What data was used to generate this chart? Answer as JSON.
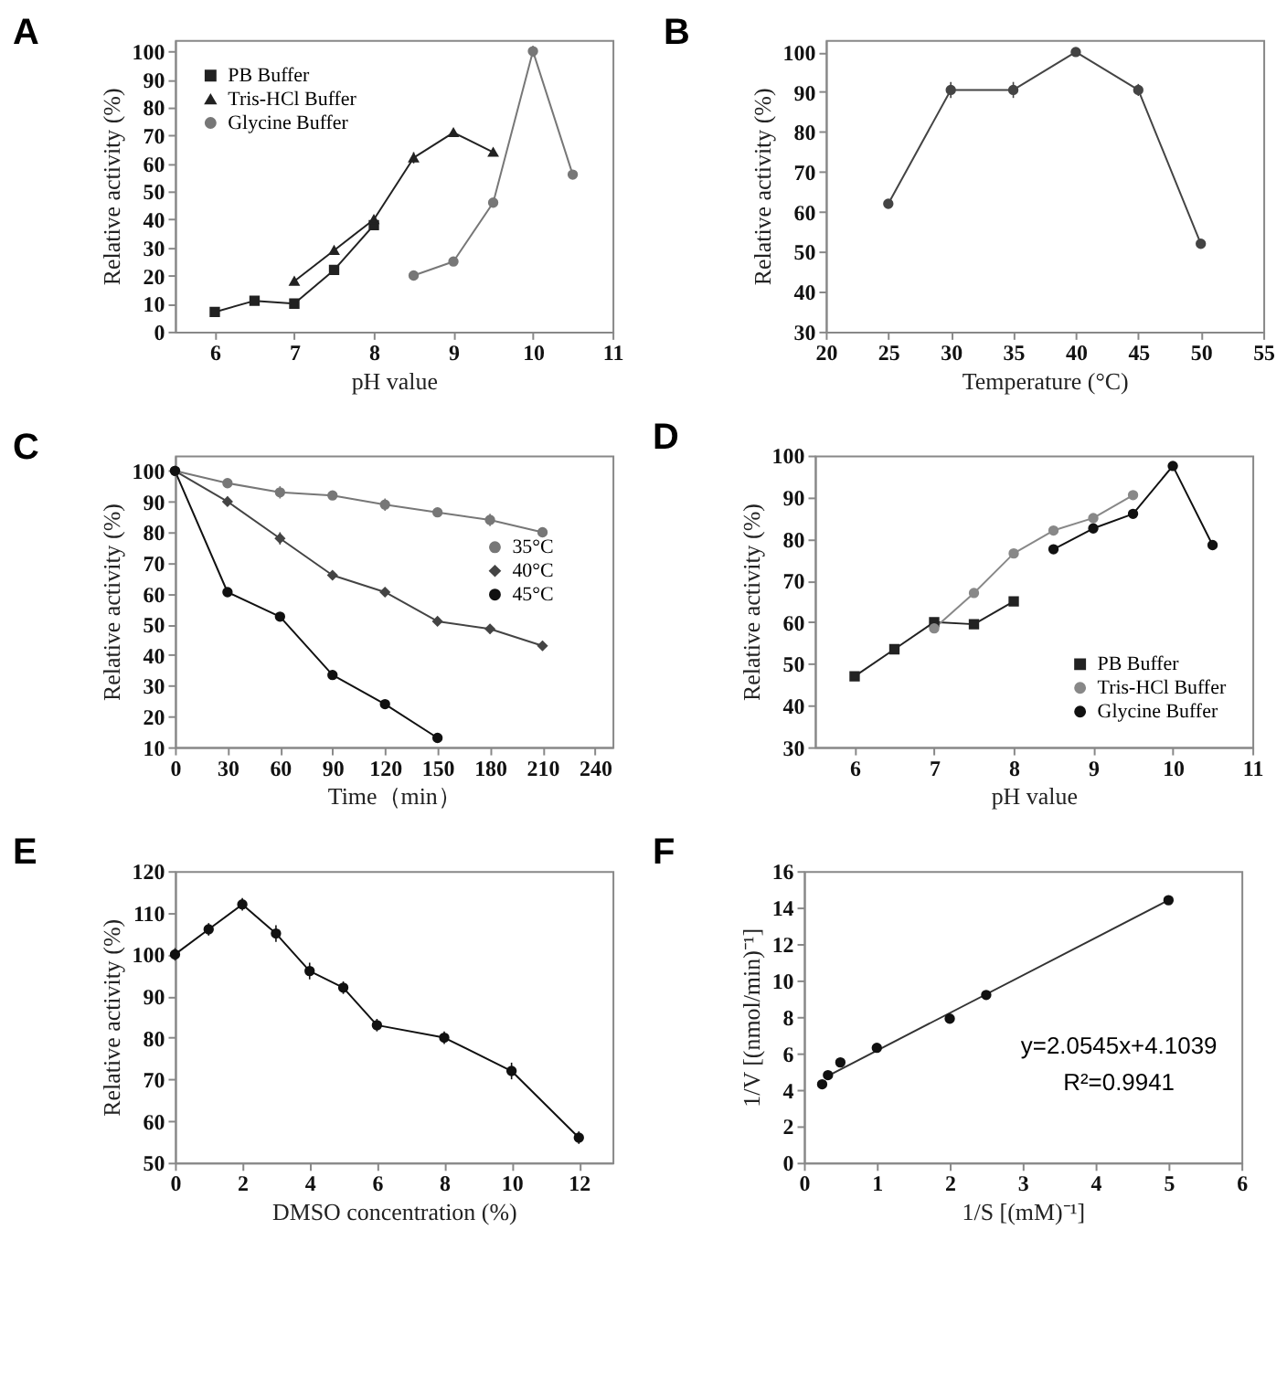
{
  "chart_data": [
    {
      "type": "line",
      "title": "A",
      "xlabel": "pH value",
      "ylabel": "Relative activity (%)",
      "xlim": [
        5.5,
        11
      ],
      "xticks": [
        6,
        7,
        8,
        9,
        10,
        11
      ],
      "ylim": [
        0,
        104
      ],
      "yticks": [
        0,
        10,
        20,
        30,
        40,
        50,
        60,
        70,
        80,
        90,
        100
      ],
      "legend": "top left",
      "grid": false,
      "series": [
        {
          "name": "PB Buffer",
          "color": "#222222",
          "marker": "square",
          "x": [
            6,
            6.5,
            7,
            7.5,
            8
          ],
          "values": [
            7,
            11,
            10,
            22,
            38
          ]
        },
        {
          "name": "Tris-HCl Buffer",
          "color": "#222222",
          "marker": "triangle",
          "x": [
            7,
            7.5,
            8,
            8.5,
            9,
            9.5
          ],
          "values": [
            18,
            29,
            40,
            62,
            71,
            64
          ],
          "errors": [
            null,
            null,
            null,
            2,
            null,
            1
          ]
        },
        {
          "name": "Glycine Buffer",
          "color": "#777777",
          "marker": "circle",
          "x": [
            8.5,
            9,
            9.5,
            10,
            10.5
          ],
          "values": [
            20,
            25,
            46,
            100,
            56
          ],
          "errors": [
            null,
            1,
            1,
            2,
            null
          ]
        }
      ]
    },
    {
      "type": "line",
      "title": "B",
      "xlabel": "Temperature (°C)",
      "ylabel": "Relative activity (%)",
      "xlim": [
        20,
        55
      ],
      "xticks": [
        20,
        25,
        30,
        35,
        40,
        45,
        50,
        55
      ],
      "ylim": [
        30,
        103
      ],
      "yticks": [
        30,
        40,
        50,
        60,
        70,
        80,
        90,
        100
      ],
      "grid": false,
      "series": [
        {
          "color": "#444444",
          "marker": "circle",
          "x": [
            25,
            30,
            35,
            40,
            45,
            50
          ],
          "values": [
            62,
            90.5,
            90.5,
            100,
            90.5,
            52
          ],
          "errors": [
            1,
            2,
            2,
            1,
            1.5,
            1
          ]
        }
      ]
    },
    {
      "type": "line",
      "title": "C",
      "xlabel": "Time（min）",
      "ylabel": "Relative activity (%)",
      "xlim": [
        0,
        250
      ],
      "xticks": [
        0,
        30,
        60,
        90,
        120,
        150,
        180,
        210,
        240
      ],
      "ylim": [
        10,
        105
      ],
      "yticks": [
        10,
        20,
        30,
        40,
        50,
        60,
        70,
        80,
        90,
        100
      ],
      "legend": "right",
      "grid": false,
      "series": [
        {
          "name": "35°C",
          "color": "#777777",
          "marker": "circle",
          "x": [
            0,
            30,
            60,
            90,
            120,
            150,
            180,
            210
          ],
          "values": [
            100,
            96,
            93,
            92,
            89,
            86.5,
            84,
            80
          ],
          "errors": [
            1,
            1,
            2,
            1,
            2,
            1,
            2,
            1.5
          ]
        },
        {
          "name": "40°C",
          "color": "#444444",
          "marker": "diamond",
          "x": [
            0,
            30,
            60,
            90,
            120,
            150,
            180,
            210
          ],
          "values": [
            100,
            90,
            78,
            66,
            60.5,
            51,
            48.5,
            43
          ],
          "errors": [
            1,
            1.5,
            2,
            1,
            1.5,
            1,
            1.5,
            1.5
          ]
        },
        {
          "name": "45°C",
          "color": "#111111",
          "marker": "circle",
          "x": [
            0,
            30,
            60,
            90,
            120,
            150
          ],
          "values": [
            100,
            60.5,
            52.5,
            33.5,
            24,
            13
          ],
          "errors": [
            1,
            1,
            1,
            1.5,
            null,
            1
          ]
        }
      ]
    },
    {
      "type": "line",
      "title": "D",
      "xlabel": "pH value",
      "ylabel": "Relative activity (%)",
      "xlim": [
        5.5,
        11
      ],
      "xticks": [
        6,
        7,
        8,
        9,
        10,
        11
      ],
      "ylim": [
        30,
        100
      ],
      "yticks": [
        30,
        40,
        50,
        60,
        70,
        80,
        90,
        100
      ],
      "legend": "bottom right",
      "grid": false,
      "series": [
        {
          "name": "PB Buffer",
          "color": "#222222",
          "marker": "square",
          "x": [
            6,
            6.5,
            7,
            7.5,
            8
          ],
          "values": [
            47,
            53.5,
            60,
            59.5,
            65
          ]
        },
        {
          "name": "Tris-HCl Buffer",
          "color": "#888888",
          "marker": "circle",
          "x": [
            7,
            7.5,
            8,
            8.5,
            9,
            9.5
          ],
          "values": [
            58.5,
            67,
            76.5,
            82,
            85,
            90.5
          ],
          "errors": [
            1,
            1,
            1,
            1,
            1,
            1
          ]
        },
        {
          "name": "Glycine Buffer",
          "color": "#111111",
          "marker": "circle",
          "x": [
            8.5,
            9,
            9.5,
            10,
            10.5
          ],
          "values": [
            77.5,
            82.5,
            86,
            97.5,
            78.5
          ],
          "errors": [
            1,
            1,
            1,
            1,
            1
          ]
        }
      ]
    },
    {
      "type": "line",
      "title": "E",
      "xlabel": "DMSO concentration (%)",
      "ylabel": "Relative activity (%)",
      "xlim": [
        0,
        13
      ],
      "xticks": [
        0,
        2,
        4,
        6,
        8,
        10,
        12
      ],
      "ylim": [
        50,
        120
      ],
      "yticks": [
        50,
        60,
        70,
        80,
        90,
        100,
        110,
        120
      ],
      "grid": false,
      "series": [
        {
          "color": "#111111",
          "marker": "circle",
          "x": [
            0,
            1,
            2,
            3,
            4,
            5,
            6,
            8,
            10,
            12
          ],
          "values": [
            100,
            106,
            112,
            105,
            96,
            92,
            83,
            80,
            72,
            56
          ],
          "errors": [
            1.5,
            1.5,
            1.5,
            2,
            2,
            1.5,
            1.5,
            1.5,
            2,
            1.5
          ]
        }
      ]
    },
    {
      "type": "scatter",
      "title": "F",
      "xlabel": "1/S [(mM)⁻¹]",
      "ylabel": "1/V [(nmol/min)⁻¹]",
      "xlim": [
        0,
        6
      ],
      "xticks": [
        0,
        1,
        2,
        3,
        4,
        5,
        6
      ],
      "ylim": [
        0,
        16
      ],
      "yticks": [
        0,
        2,
        4,
        6,
        8,
        10,
        12,
        14,
        16
      ],
      "grid": false,
      "annotations": [
        "y=2.0545x+4.1039",
        "R²=0.9941"
      ],
      "series": [
        {
          "color": "#111111",
          "marker": "circle",
          "x": [
            0.25,
            0.33,
            0.5,
            1,
            2,
            2.5,
            5
          ],
          "values": [
            4.3,
            4.8,
            5.5,
            6.3,
            7.9,
            9.2,
            14.4
          ]
        },
        {
          "type": "line",
          "color": "#333333",
          "marker": "none",
          "x": [
            0.3,
            5
          ],
          "values": [
            4.7,
            14.4
          ]
        }
      ]
    }
  ]
}
